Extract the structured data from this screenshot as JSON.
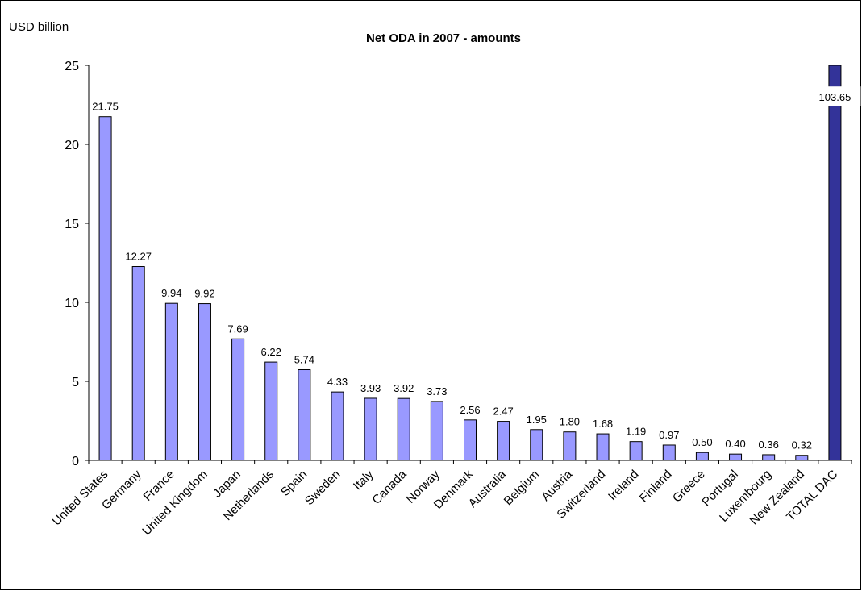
{
  "chart_data": {
    "type": "bar",
    "title": "Net ODA  in 2007 - amounts",
    "ylabel": "USD billion",
    "xlabel": "",
    "ylim": [
      0,
      25
    ],
    "yticks": [
      0,
      5,
      10,
      15,
      20,
      25
    ],
    "grid": false,
    "legend": "none",
    "categories": [
      "United States",
      "Germany",
      "France",
      "United Kingdom",
      "Japan",
      "Netherlands",
      "Spain",
      "Sweden",
      "Italy",
      "Canada",
      "Norway",
      "Denmark",
      "Australia",
      "Belgium",
      "Austria",
      "Switzerland",
      "Ireland",
      "Finland",
      "Greece",
      "Portugal",
      "Luxembourg",
      "New Zealand",
      "TOTAL DAC"
    ],
    "values": [
      21.75,
      12.27,
      9.94,
      9.92,
      7.69,
      6.22,
      5.74,
      4.33,
      3.93,
      3.92,
      3.73,
      2.56,
      2.47,
      1.95,
      1.8,
      1.68,
      1.19,
      0.97,
      0.5,
      0.4,
      0.36,
      0.32,
      103.65
    ],
    "value_labels": [
      "21.75",
      "12.27",
      "9.94",
      "9.92",
      "7.69",
      "6.22",
      "5.74",
      "4.33",
      "3.93",
      "3.92",
      "3.73",
      "2.56",
      "2.47",
      "1.95",
      "1.80",
      "1.68",
      "1.19",
      "0.97",
      "0.50",
      "0.40",
      "0.36",
      "0.32",
      "103.65"
    ],
    "truncated_bars": [
      "TOTAL DAC"
    ],
    "colors": {
      "bar_fill": "#9999ff",
      "bar_stroke": "#000000",
      "total_fill": "#333399",
      "axis": "#000000"
    }
  }
}
